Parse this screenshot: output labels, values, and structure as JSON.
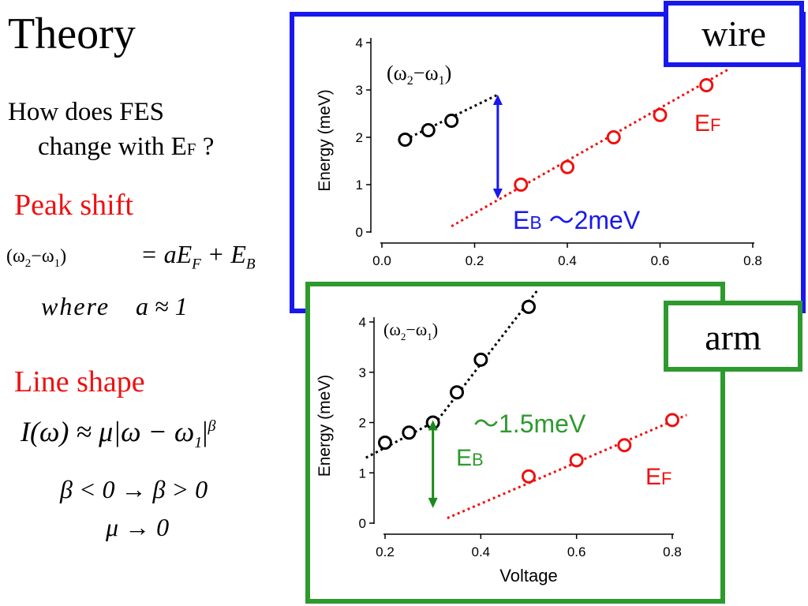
{
  "slide": {
    "title": "Theory",
    "question_line1": "How does FES",
    "question_line2_pre": "change with E",
    "question_line2_sub": "F",
    "question_line2_post": " ?",
    "peak_shift_heading": "Peak shift",
    "peak_eq_lhs_w2": "(ω",
    "peak_eq_lhs_sub2": "2",
    "peak_eq_lhs_mid": "−ω",
    "peak_eq_lhs_sub1": "1",
    "peak_eq_lhs_close": ")",
    "peak_eq_rhs": "= aE",
    "peak_eq_rhs_subF": "F",
    "peak_eq_rhs_plus": " + E",
    "peak_eq_rhs_subB": "B",
    "where_text": "where",
    "where_cond": "a ≈ 1",
    "line_shape_heading": "Line shape",
    "line_eq_main": "I(ω) ≈ μ|ω − ω",
    "line_eq_sub": "1",
    "line_eq_bar": "|",
    "line_eq_exp": "β",
    "beta_change": "β < 0 → β > 0",
    "mu_change": "μ → 0"
  },
  "colors": {
    "wire_frame": "#1818ee",
    "arm_frame": "#2e9a2e",
    "ef_series": "#ee1111",
    "omega_series": "#000000",
    "wire_arrow": "#1818ee",
    "arm_arrow": "#1a8a1a"
  },
  "chart_data": [
    {
      "type": "scatter",
      "label_box": "wire",
      "xlabel": "",
      "ylabel": "Energy (meV)",
      "xlim": [
        0.0,
        0.8
      ],
      "ylim": [
        0,
        4
      ],
      "xticks": [
        "0.0",
        "0.2",
        "0.4",
        "0.6",
        "0.8"
      ],
      "yticks": [
        "0",
        "1",
        "2",
        "3",
        "4"
      ],
      "series": [
        {
          "name": "(ω2−ω1)",
          "x": [
            0.05,
            0.1,
            0.15
          ],
          "y": [
            1.95,
            2.15,
            2.35
          ]
        },
        {
          "name": "EF",
          "x": [
            0.3,
            0.4,
            0.5,
            0.6,
            0.7
          ],
          "y": [
            1.0,
            1.37,
            2.0,
            2.47,
            3.1
          ]
        }
      ],
      "fits": [
        {
          "series": "(ω2−ω1)",
          "x": [
            0.05,
            0.25
          ],
          "y": [
            1.95,
            2.9
          ]
        },
        {
          "series": "EF",
          "x": [
            0.15,
            0.75
          ],
          "y": [
            0.12,
            3.45
          ]
        }
      ],
      "arrow": {
        "x": 0.25,
        "y_from": 0.7,
        "y_to": 2.9
      },
      "annotation_omega": {
        "pre": "(ω",
        "s2": "2",
        "mid": "−ω",
        "s1": "1",
        "post": ")"
      },
      "annotation_ef": {
        "main": "E",
        "sub": "F"
      },
      "annotation_eb": {
        "main": "E",
        "sub": "B",
        "rest": " ～2meV"
      }
    },
    {
      "type": "scatter",
      "label_box": "arm",
      "xlabel": "Voltage",
      "ylabel": "Energy (meV)",
      "xlim": [
        0.2,
        0.8
      ],
      "ylim": [
        0,
        4
      ],
      "xticks": [
        "0.2",
        "0.4",
        "0.6",
        "0.8"
      ],
      "yticks": [
        "0",
        "1",
        "2",
        "3",
        "4"
      ],
      "series": [
        {
          "name": "(ω2−ω1)",
          "x": [
            0.2,
            0.25,
            0.3,
            0.35,
            0.4,
            0.5
          ],
          "y": [
            1.6,
            1.8,
            2.0,
            2.6,
            3.25,
            4.3
          ]
        },
        {
          "name": "EF",
          "x": [
            0.5,
            0.6,
            0.7,
            0.8
          ],
          "y": [
            0.93,
            1.25,
            1.55,
            2.05
          ]
        }
      ],
      "fits": [
        {
          "series": "(ω2−ω1)",
          "x": [
            0.16,
            0.31
          ],
          "y": [
            1.3,
            2.05
          ]
        },
        {
          "series": "(ω2−ω1)",
          "x": [
            0.31,
            0.52
          ],
          "y": [
            2.05,
            4.65
          ]
        },
        {
          "series": "EF",
          "x": [
            0.33,
            0.83
          ],
          "y": [
            0.1,
            2.15
          ]
        }
      ],
      "arrow": {
        "x": 0.3,
        "y_from": 0.3,
        "y_to": 2.05
      },
      "annotation_omega": {
        "pre": "(ω",
        "s2": "2",
        "mid": "−ω",
        "s1": "1",
        "post": ")"
      },
      "annotation_ef": {
        "main": "E",
        "sub": "F"
      },
      "annotation_eb": {
        "main": "E",
        "sub": "B",
        "rest": ""
      },
      "annotation_tilde": "～1.5meV"
    }
  ]
}
